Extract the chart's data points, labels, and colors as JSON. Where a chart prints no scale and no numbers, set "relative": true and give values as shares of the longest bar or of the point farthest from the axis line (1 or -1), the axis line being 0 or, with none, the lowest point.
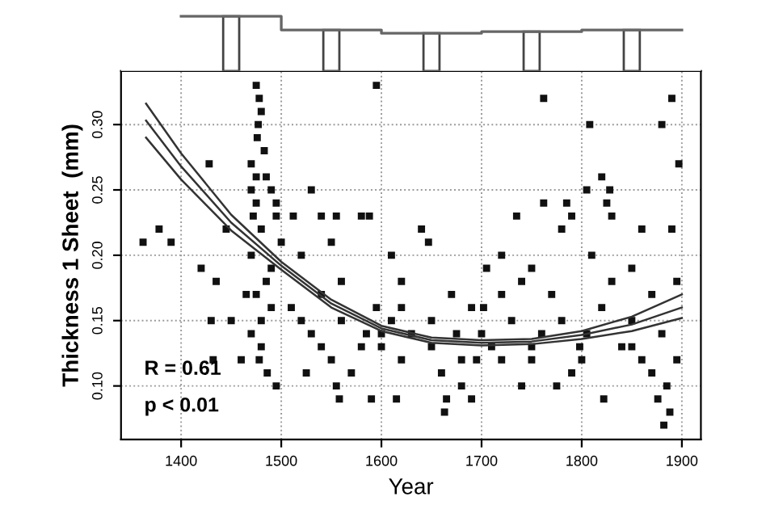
{
  "chart_data": [
    {
      "type": "scatter",
      "xlabel": "Year",
      "ylabel": "Thickness 1 Sheet  (mm)",
      "xlim": [
        1340,
        1919
      ],
      "ylim": [
        0.059,
        0.341
      ],
      "xticks": [
        1400,
        1500,
        1600,
        1700,
        1800,
        1900
      ],
      "yticks": [
        {
          "value": 0.1,
          "label": "0.10"
        },
        {
          "value": 0.15,
          "label": "0.15"
        },
        {
          "value": 0.2,
          "label": "0.20"
        },
        {
          "value": 0.25,
          "label": "0.25"
        },
        {
          "value": 0.3,
          "label": "0.30"
        }
      ],
      "grid": true,
      "annotations": [
        "R = 0.61",
        "p < 0.01"
      ],
      "series": [
        {
          "color": "#111111",
          "marker": "square",
          "x": [
            1362,
            1378,
            1390,
            1420,
            1428,
            1430,
            1432,
            1435,
            1445,
            1450,
            1460,
            1465,
            1475,
            1478,
            1480,
            1477,
            1476,
            1483,
            1470,
            1475,
            1485,
            1470,
            1490,
            1475,
            1495,
            1472,
            1495,
            1480,
            1500,
            1470,
            1490,
            1485,
            1475,
            1490,
            1480,
            1470,
            1480,
            1478,
            1486,
            1495,
            1512,
            1530,
            1540,
            1555,
            1580,
            1588,
            1595,
            1520,
            1550,
            1560,
            1540,
            1510,
            1560,
            1530,
            1580,
            1550,
            1570,
            1555,
            1558,
            1590,
            1525,
            1585,
            1595,
            1640,
            1620,
            1610,
            1630,
            1650,
            1620,
            1660,
            1680,
            1665,
            1663,
            1690,
            1647,
            1670,
            1690,
            1600,
            1615,
            1675,
            1695,
            1610,
            1735,
            1762,
            1762,
            1785,
            1790,
            1780,
            1720,
            1750,
            1740,
            1770,
            1730,
            1760,
            1710,
            1750,
            1790,
            1740,
            1775,
            1702,
            1720,
            1798,
            1705,
            1808,
            1805,
            1828,
            1820,
            1825,
            1830,
            1860,
            1880,
            1890,
            1897,
            1890,
            1810,
            1850,
            1830,
            1870,
            1820,
            1850,
            1880,
            1840,
            1860,
            1870,
            1885,
            1822,
            1876,
            1888,
            1882,
            1895,
            1805,
            1895,
            1520,
            1600,
            1700,
            1650,
            1750,
            1800,
            1850,
            1680,
            1540,
            1620,
            1720,
            1780
          ],
          "values": [
            0.21,
            0.22,
            0.21,
            0.19,
            0.27,
            0.15,
            0.12,
            0.18,
            0.22,
            0.15,
            0.12,
            0.17,
            0.33,
            0.32,
            0.31,
            0.3,
            0.29,
            0.28,
            0.27,
            0.26,
            0.26,
            0.25,
            0.25,
            0.24,
            0.24,
            0.23,
            0.23,
            0.22,
            0.21,
            0.2,
            0.19,
            0.18,
            0.17,
            0.16,
            0.15,
            0.14,
            0.13,
            0.12,
            0.11,
            0.1,
            0.23,
            0.25,
            0.23,
            0.23,
            0.23,
            0.23,
            0.33,
            0.2,
            0.21,
            0.18,
            0.17,
            0.16,
            0.15,
            0.14,
            0.13,
            0.12,
            0.11,
            0.1,
            0.09,
            0.09,
            0.11,
            0.14,
            0.16,
            0.22,
            0.18,
            0.15,
            0.14,
            0.13,
            0.12,
            0.11,
            0.1,
            0.09,
            0.08,
            0.09,
            0.21,
            0.17,
            0.16,
            0.13,
            0.09,
            0.14,
            0.12,
            0.2,
            0.23,
            0.32,
            0.24,
            0.24,
            0.23,
            0.22,
            0.2,
            0.19,
            0.18,
            0.17,
            0.15,
            0.14,
            0.13,
            0.12,
            0.11,
            0.1,
            0.1,
            0.16,
            0.12,
            0.13,
            0.19,
            0.3,
            0.25,
            0.25,
            0.26,
            0.24,
            0.23,
            0.22,
            0.3,
            0.32,
            0.27,
            0.22,
            0.2,
            0.19,
            0.18,
            0.17,
            0.16,
            0.15,
            0.14,
            0.13,
            0.12,
            0.11,
            0.1,
            0.09,
            0.09,
            0.08,
            0.07,
            0.18,
            0.14,
            0.12,
            0.15,
            0.14,
            0.14,
            0.15,
            0.13,
            0.12,
            0.13,
            0.12,
            0.13,
            0.16,
            0.17,
            0.15
          ]
        },
        {
          "type": "line",
          "color": "#333333",
          "x": [
            1365,
            1400,
            1450,
            1500,
            1550,
            1600,
            1650,
            1700,
            1750,
            1800,
            1850,
            1900
          ],
          "values": [
            0.316,
            0.278,
            0.231,
            0.195,
            0.166,
            0.146,
            0.137,
            0.135,
            0.136,
            0.142,
            0.153,
            0.17
          ]
        },
        {
          "type": "line",
          "color": "#333333",
          "x": [
            1365,
            1400,
            1450,
            1500,
            1550,
            1600,
            1650,
            1700,
            1750,
            1800,
            1850,
            1900
          ],
          "values": [
            0.303,
            0.268,
            0.225,
            0.192,
            0.163,
            0.144,
            0.135,
            0.133,
            0.134,
            0.139,
            0.147,
            0.16
          ]
        },
        {
          "type": "line",
          "color": "#333333",
          "x": [
            1365,
            1400,
            1450,
            1500,
            1550,
            1600,
            1650,
            1700,
            1750,
            1800,
            1850,
            1900
          ],
          "values": [
            0.29,
            0.258,
            0.219,
            0.189,
            0.16,
            0.142,
            0.133,
            0.131,
            0.132,
            0.136,
            0.142,
            0.152
          ]
        }
      ]
    },
    {
      "type": "step",
      "relative": true,
      "xlim": [
        1340,
        1919
      ],
      "tick_labels": false,
      "series": [
        {
          "color": "#666666",
          "x": [
            1400,
            1500,
            1600,
            1700,
            1800,
            1900
          ],
          "values": [
            1,
            0.75,
            0.69,
            0.72,
            0.75,
            0.75
          ]
        }
      ]
    }
  ]
}
